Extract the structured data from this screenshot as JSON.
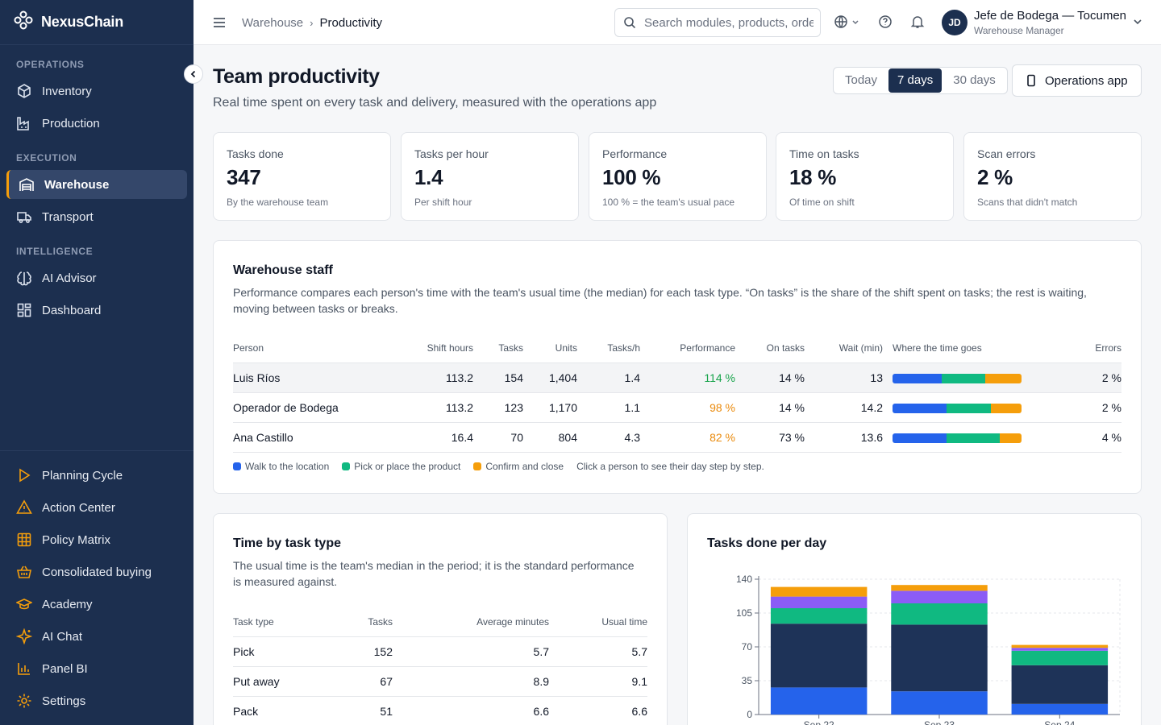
{
  "app": {
    "name": "NexusChain"
  },
  "sidebar": {
    "sections": [
      {
        "title": "OPERATIONS",
        "items": [
          {
            "label": "Inventory",
            "icon": "box-icon"
          },
          {
            "label": "Production",
            "icon": "factory-icon"
          }
        ]
      },
      {
        "title": "EXECUTION",
        "items": [
          {
            "label": "Warehouse",
            "icon": "warehouse-icon",
            "active": true
          },
          {
            "label": "Transport",
            "icon": "truck-icon"
          }
        ]
      },
      {
        "title": "INTELLIGENCE",
        "items": [
          {
            "label": "AI Advisor",
            "icon": "brain-icon"
          },
          {
            "label": "Dashboard",
            "icon": "grid-icon"
          }
        ]
      }
    ],
    "bottom_items": [
      {
        "label": "Planning Cycle",
        "icon": "play-icon"
      },
      {
        "label": "Action Center",
        "icon": "alert-icon"
      },
      {
        "label": "Policy Matrix",
        "icon": "table-icon"
      },
      {
        "label": "Consolidated buying",
        "icon": "basket-icon"
      },
      {
        "label": "Academy",
        "icon": "graduation-cap-icon"
      },
      {
        "label": "AI Chat",
        "icon": "sparkle-icon"
      },
      {
        "label": "Panel BI",
        "icon": "bar-chart-icon"
      },
      {
        "label": "Settings",
        "icon": "gear-icon"
      }
    ],
    "accent": "#f59e0b",
    "background": "#1c2f4f"
  },
  "topbar": {
    "breadcrumb": [
      "Warehouse",
      "Productivity"
    ],
    "search_placeholder": "Search modules, products, orders...",
    "user": {
      "initials": "JD",
      "name": "Jefe de Bodega — Tocumen",
      "role": "Warehouse Manager"
    }
  },
  "page": {
    "title": "Team productivity",
    "subtitle": "Real time spent on every task and delivery, measured with the operations app",
    "ranges": [
      "Today",
      "7 days",
      "30 days"
    ],
    "selected_range": "7 days",
    "ops_button": "Operations app"
  },
  "kpis": [
    {
      "label": "Tasks done",
      "value": "347",
      "hint": "By the warehouse team"
    },
    {
      "label": "Tasks per hour",
      "value": "1.4",
      "hint": "Per shift hour"
    },
    {
      "label": "Performance",
      "value": "100 %",
      "hint": "100 % = the team's usual pace"
    },
    {
      "label": "Time on tasks",
      "value": "18 %",
      "hint": "Of time on shift"
    },
    {
      "label": "Scan errors",
      "value": "2 %",
      "hint": "Scans that didn't match"
    }
  ],
  "staff": {
    "title": "Warehouse staff",
    "description": "Performance compares each person's time with the team's usual time (the median) for each task type. “On tasks” is the share of the shift spent on tasks; the rest is waiting, moving between tasks or breaks.",
    "columns": [
      "Person",
      "Shift hours",
      "Tasks",
      "Units",
      "Tasks/h",
      "Performance",
      "On tasks",
      "Wait (min)",
      "Where the time goes",
      "Errors"
    ],
    "rows": [
      {
        "person": "Luis Ríos",
        "shift_hours": "113.2",
        "tasks": "154",
        "units": "1,404",
        "tasks_h": "1.4",
        "performance": "114 %",
        "perf_color": "#16a34a",
        "on_tasks": "14 %",
        "wait": "13",
        "split": [
          38,
          34,
          28
        ],
        "errors": "2 %"
      },
      {
        "person": "Operador de Bodega",
        "shift_hours": "113.2",
        "tasks": "123",
        "units": "1,170",
        "tasks_h": "1.1",
        "performance": "98 %",
        "perf_color": "#ea8a0c",
        "on_tasks": "14 %",
        "wait": "14.2",
        "split": [
          42,
          34,
          24
        ],
        "errors": "2 %"
      },
      {
        "person": "Ana Castillo",
        "shift_hours": "16.4",
        "tasks": "70",
        "units": "804",
        "tasks_h": "4.3",
        "performance": "82 %",
        "perf_color": "#ea8a0c",
        "on_tasks": "73 %",
        "wait": "13.6",
        "split": [
          42,
          41,
          17
        ],
        "errors": "4 %"
      }
    ],
    "legend": [
      {
        "label": "Walk to the location",
        "color": "#2563eb"
      },
      {
        "label": "Pick or place the product",
        "color": "#10b981"
      },
      {
        "label": "Confirm and close",
        "color": "#f59e0b"
      }
    ],
    "legend_hint": "Click a person to see their day step by step."
  },
  "task_types": {
    "title": "Time by task type",
    "description": "The usual time is the team's median in the period; it is the standard performance is measured against.",
    "columns": [
      "Task type",
      "Tasks",
      "Average minutes",
      "Usual time"
    ],
    "rows": [
      {
        "type": "Pick",
        "tasks": "152",
        "avg": "5.7",
        "usual": "5.7"
      },
      {
        "type": "Put away",
        "tasks": "67",
        "avg": "8.9",
        "usual": "9.1"
      },
      {
        "type": "Pack",
        "tasks": "51",
        "avg": "6.6",
        "usual": "6.6"
      }
    ]
  },
  "chart_data": {
    "type": "bar",
    "stacked": true,
    "title": "Tasks done per day",
    "categories": [
      "Sep 22",
      "Sep 23",
      "Sep 24"
    ],
    "series": [
      {
        "values": [
          28,
          24,
          11
        ],
        "color": "#2563eb"
      },
      {
        "values": [
          66,
          69,
          40
        ],
        "color": "#1e3358"
      },
      {
        "values": [
          16,
          22,
          15
        ],
        "color": "#10b981"
      },
      {
        "values": [
          12,
          13,
          3
        ],
        "color": "#8b5cf6"
      },
      {
        "values": [
          10,
          6,
          3
        ],
        "color": "#f59e0b"
      }
    ],
    "ylim": [
      0,
      140
    ],
    "yticks": [
      0,
      35,
      70,
      105,
      140
    ],
    "grid": true
  }
}
